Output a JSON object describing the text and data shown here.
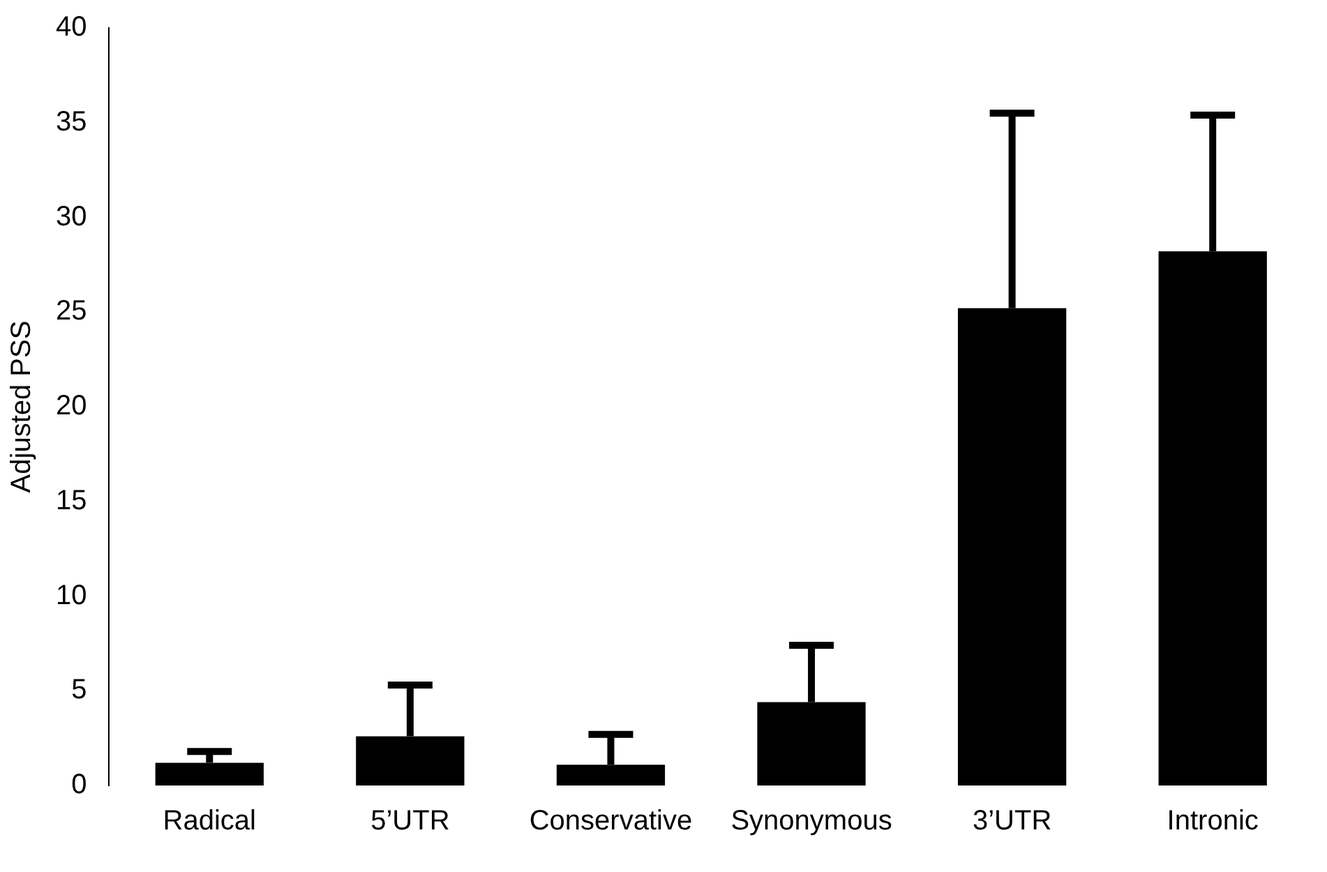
{
  "chart_data": {
    "type": "bar",
    "ylabel": "Adjusted PSS",
    "categories": [
      "Radical",
      "5’UTR",
      "Conservative",
      "Synonymous",
      "3’UTR",
      "Intronic"
    ],
    "values": [
      1.2,
      2.6,
      1.1,
      4.4,
      25.2,
      28.2
    ],
    "errors": [
      [
        1.2,
        1.8
      ],
      [
        2.6,
        5.3
      ],
      [
        1.1,
        2.7
      ],
      [
        4.4,
        7.4
      ],
      [
        25.2,
        35.5
      ],
      [
        28.2,
        35.4
      ]
    ],
    "color": "#000000",
    "ylim": [
      0,
      40
    ],
    "yticks": [
      0,
      5,
      10,
      15,
      20,
      25,
      30,
      35,
      40
    ],
    "grid": false,
    "legend": false
  }
}
